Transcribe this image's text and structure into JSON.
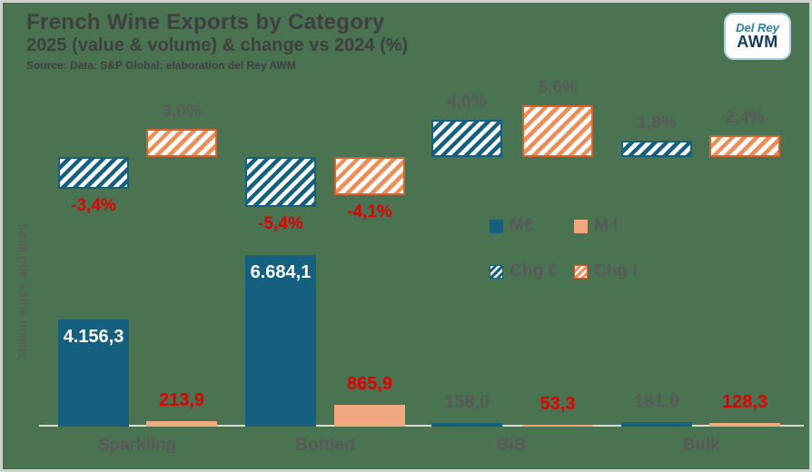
{
  "colors": {
    "background": "#4a7352",
    "blue": "#15607f",
    "salmon": "#f2a87e",
    "hatch_orange_border": "#d2622f",
    "red": "#e00000",
    "gray": "#595959",
    "title_text": "#3f3f3f"
  },
  "logo": {
    "line1": "Del Rey",
    "line2": "AWM"
  },
  "chart_data": {
    "type": "bar",
    "title": "French Wine Exports by Category",
    "subtitle": "2025 (value & volume) & change vs 2024 (%)",
    "source": "Source: Data: S&P Global; elaboration del Rey AWM",
    "ylabel": "Million euros and litres",
    "categories": [
      "Sparkling",
      "Bottled",
      "BiB",
      "Bulk"
    ],
    "series": [
      {
        "name": "M€",
        "values": [
          4156.3,
          6684.1,
          158.0,
          181.0
        ],
        "labels": [
          "4.156,3",
          "6.684,1",
          "158,0",
          "181,0"
        ]
      },
      {
        "name": "M l",
        "values": [
          213.9,
          865.9,
          53.3,
          128.3
        ],
        "labels": [
          "213,9",
          "865,9",
          "53,3",
          "128,3"
        ]
      },
      {
        "name": "Chg €",
        "values": [
          -3.4,
          -5.4,
          4.0,
          1.8
        ],
        "labels": [
          "-3,4%",
          "-5,4%",
          "4,0%",
          "1,8%"
        ]
      },
      {
        "name": "Chg l",
        "values": [
          3.0,
          -4.1,
          5.6,
          2.4
        ],
        "labels": [
          "3,0%",
          "-4,1%",
          "5,6%",
          "2,4%"
        ]
      }
    ],
    "legend_entries": [
      "M€",
      "M l",
      "Chg €",
      "Chg l"
    ],
    "legend_position": "center-right",
    "grid": false
  }
}
